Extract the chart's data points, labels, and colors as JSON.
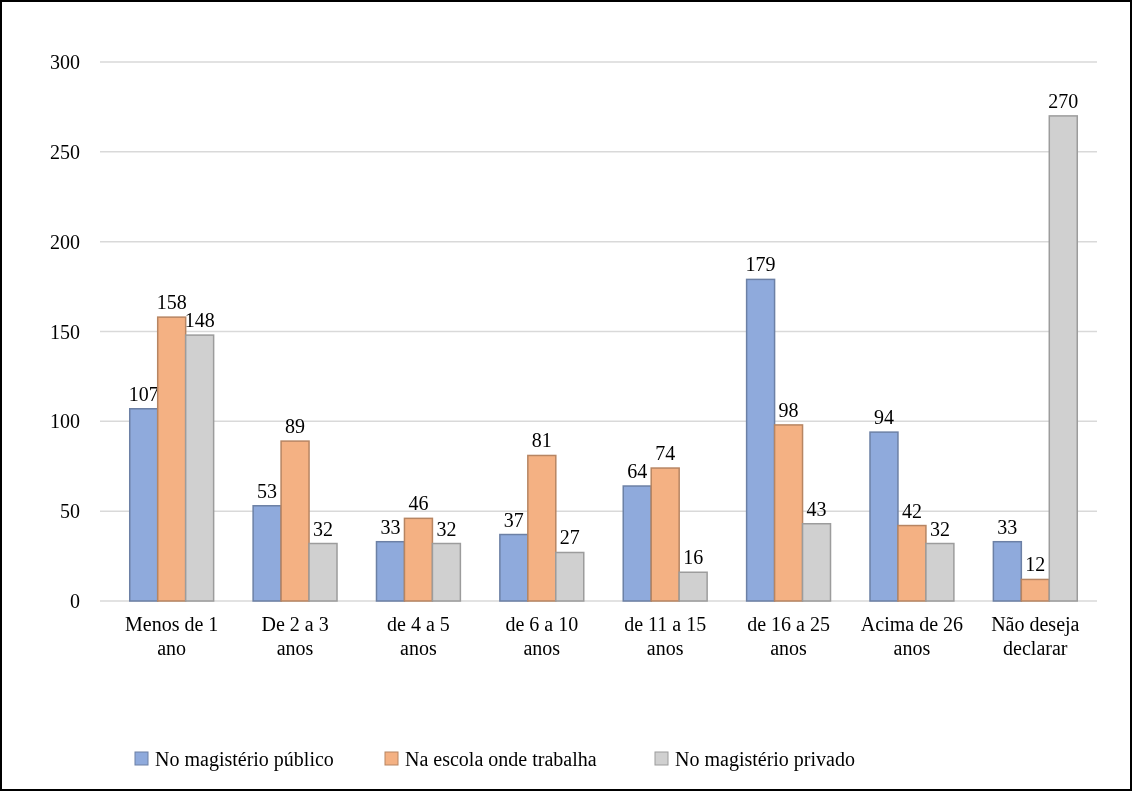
{
  "chart_data": {
    "type": "bar",
    "categories": [
      "Menos de 1 ano",
      "De 2 a 3 anos",
      "de 4 a 5 anos",
      "de 6 a 10 anos",
      "de 11 a 15 anos",
      "de 16 a 25 anos",
      "Acima de 26 anos",
      "Não deseja declarar"
    ],
    "series": [
      {
        "name": "No magistério público",
        "color": "#8faadc",
        "values": [
          107,
          53,
          33,
          37,
          64,
          179,
          94,
          33
        ]
      },
      {
        "name": "Na escola onde trabalha",
        "color": "#f4b183",
        "values": [
          158,
          89,
          46,
          81,
          74,
          98,
          42,
          12
        ]
      },
      {
        "name": "No magistério privado",
        "color": "#d0d0d0",
        "values": [
          148,
          32,
          32,
          27,
          16,
          43,
          32,
          270
        ]
      }
    ],
    "ylim": [
      0,
      300
    ],
    "yticks": [
      0,
      50,
      100,
      150,
      200,
      250,
      300
    ],
    "grid": "y",
    "legend": "bottom",
    "data_labels": true
  }
}
